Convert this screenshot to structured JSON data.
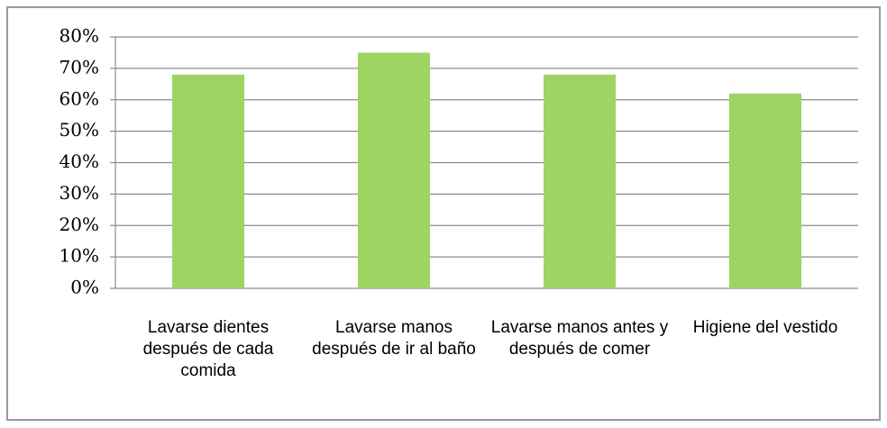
{
  "chart_data": {
    "type": "bar",
    "categories": [
      "Lavarse dientes después de cada comida",
      "Lavarse manos después de ir al baño",
      "Lavarse manos antes y después de comer",
      "Higiene del vestido"
    ],
    "values": [
      68,
      75,
      68,
      62
    ],
    "color": "#9dd462",
    "ylim": [
      0,
      80
    ],
    "yticks": [
      {
        "value": 0,
        "label": "0%"
      },
      {
        "value": 10,
        "label": "10%"
      },
      {
        "value": 20,
        "label": "20%"
      },
      {
        "value": 30,
        "label": "30%"
      },
      {
        "value": 40,
        "label": "40%"
      },
      {
        "value": 50,
        "label": "50%"
      },
      {
        "value": 60,
        "label": "60%"
      },
      {
        "value": 70,
        "label": "70%"
      },
      {
        "value": 80,
        "label": "80%"
      }
    ],
    "grid": true
  }
}
